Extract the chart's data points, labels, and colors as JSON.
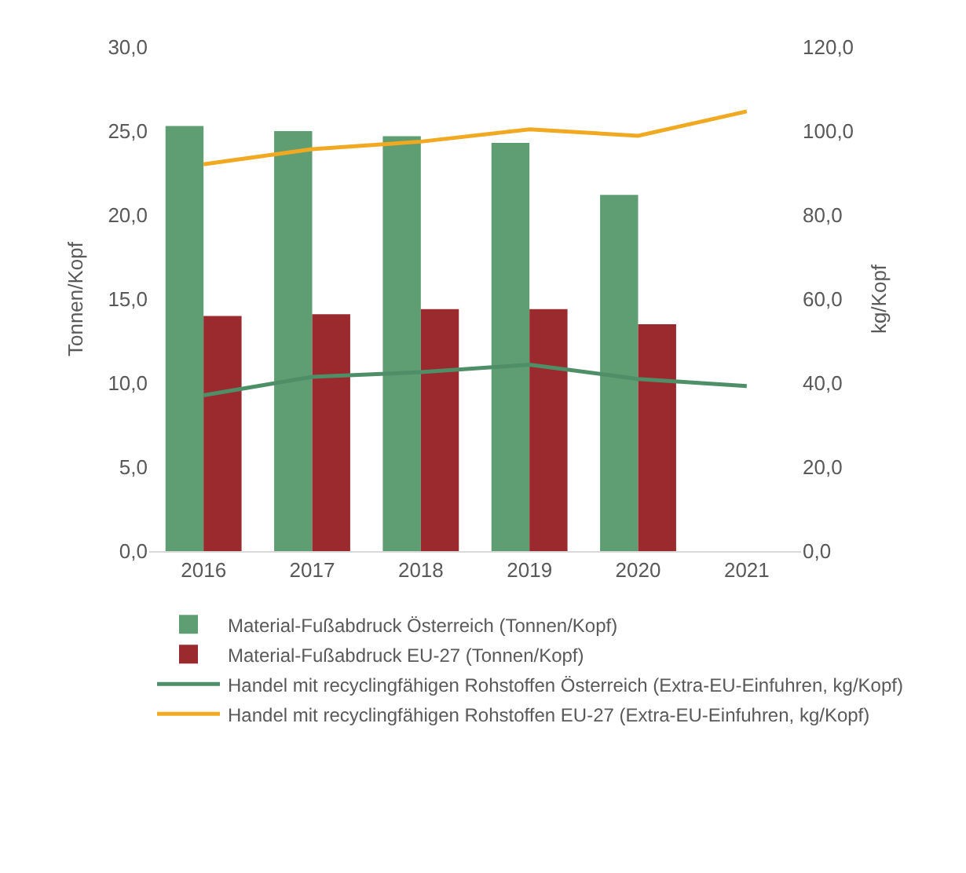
{
  "chart_data": {
    "type": "bar",
    "categories": [
      "2016",
      "2017",
      "2018",
      "2019",
      "2020",
      "2021"
    ],
    "ylabel": "Tonnen/Kopf",
    "y2label": "kg/Kopf",
    "series": [
      {
        "name": "Material-Fußabdruck Österreich (Tonnen/Kopf)",
        "color": "#5f9e72",
        "values": [
          25.3,
          25.0,
          24.7,
          24.3,
          21.2,
          null
        ]
      },
      {
        "name": "Material-Fußabdruck EU-27 (Tonnen/Kopf)",
        "color": "#9b2a2e",
        "values": [
          14.0,
          14.1,
          14.4,
          14.4,
          13.5,
          null
        ]
      },
      {
        "name": "Handel mit recyclingfähigen Rohstoffen Österreich (Extra-EU-Einfuhren, kg/Kopf)",
        "type": "line",
        "axis": "y2",
        "color": "#4f8f68",
        "values": [
          37.1,
          41.5,
          42.6,
          44.4,
          41.0,
          39.3
        ]
      },
      {
        "name": "Handel mit recyclingfähigen Rohstoffen EU-27 (Extra-EU-Einfuhren, kg/Kopf)",
        "type": "line",
        "axis": "y2",
        "color": "#f2a922",
        "values": [
          92.1,
          95.7,
          97.5,
          100.4,
          98.9,
          104.7
        ]
      }
    ],
    "ylim": [
      0,
      30
    ],
    "yticks": [
      {
        "value": 0,
        "label": "0,0"
      },
      {
        "value": 5,
        "label": "5,0"
      },
      {
        "value": 10,
        "label": "10,0"
      },
      {
        "value": 15,
        "label": "15,0"
      },
      {
        "value": 20,
        "label": "20,0"
      },
      {
        "value": 25,
        "label": "25,0"
      },
      {
        "value": 30,
        "label": "30,0"
      }
    ],
    "y2lim": [
      0,
      120
    ],
    "y2ticks": [
      {
        "value": 0,
        "label": "0,0"
      },
      {
        "value": 20,
        "label": "20,0"
      },
      {
        "value": 40,
        "label": "40,0"
      },
      {
        "value": 60,
        "label": "60,0"
      },
      {
        "value": 80,
        "label": "80,0"
      },
      {
        "value": 100,
        "label": "100,0"
      },
      {
        "value": 120,
        "label": "120,0"
      }
    ],
    "grid": false,
    "legend": "bottom",
    "marker": "none",
    "line_style": "solid"
  }
}
